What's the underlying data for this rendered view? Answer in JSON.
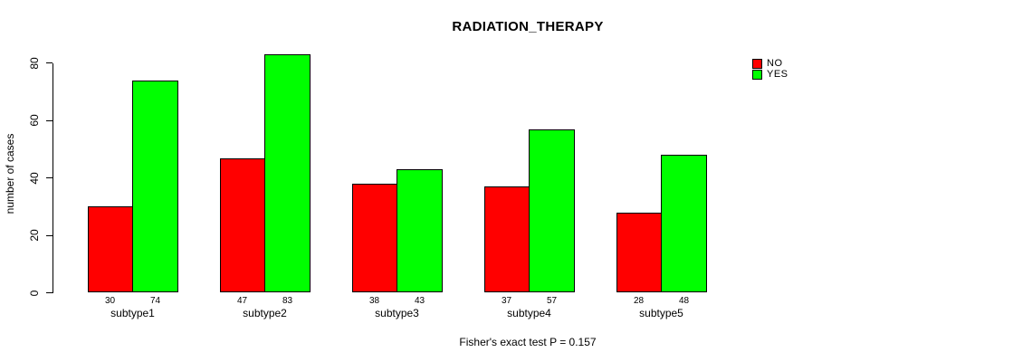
{
  "chart_data": {
    "type": "bar",
    "title": "RADIATION_THERAPY",
    "xlabel": "",
    "ylabel": "number of cases",
    "categories": [
      "subtype1",
      "subtype2",
      "subtype3",
      "subtype4",
      "subtype5"
    ],
    "series": [
      {
        "name": "NO",
        "color": "#ff0000",
        "values": [
          30,
          47,
          38,
          37,
          28
        ]
      },
      {
        "name": "YES",
        "color": "#00ff00",
        "values": [
          74,
          83,
          43,
          57,
          48
        ]
      }
    ],
    "bar_value_labels": [
      [
        "30",
        "74"
      ],
      [
        "47",
        "83"
      ],
      [
        "38",
        "43"
      ],
      [
        "37",
        "57"
      ],
      [
        "28",
        "48"
      ]
    ],
    "yticks": [
      "0",
      "20",
      "40",
      "60",
      "80"
    ],
    "ylim": [
      0,
      80
    ],
    "grid": false,
    "legend_position": "top-right",
    "legend_entries": [
      "NO",
      "YES"
    ],
    "caption": "Fisher's exact test P = 0.157",
    "axis_color": "#000000",
    "background_color": "#ffffff"
  }
}
